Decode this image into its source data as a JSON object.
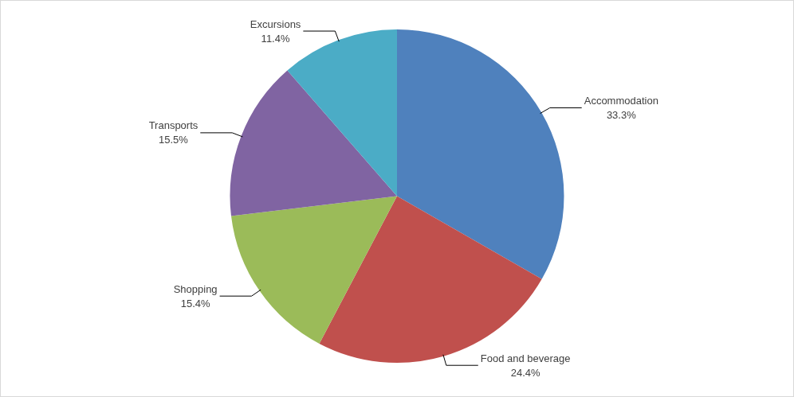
{
  "chart_data": {
    "type": "pie",
    "categories": [
      "Accommodation",
      "Food and beverage",
      "Shopping",
      "Transports",
      "Excursions"
    ],
    "values": [
      33.3,
      24.4,
      15.4,
      15.5,
      11.4
    ],
    "value_labels": [
      "33.3%",
      "24.4%",
      "15.4%",
      "15.5%",
      "11.4%"
    ],
    "colors": [
      "#4f81bd",
      "#c0504d",
      "#9bbb59",
      "#8064a2",
      "#4bacc6"
    ],
    "data_labels": true
  }
}
